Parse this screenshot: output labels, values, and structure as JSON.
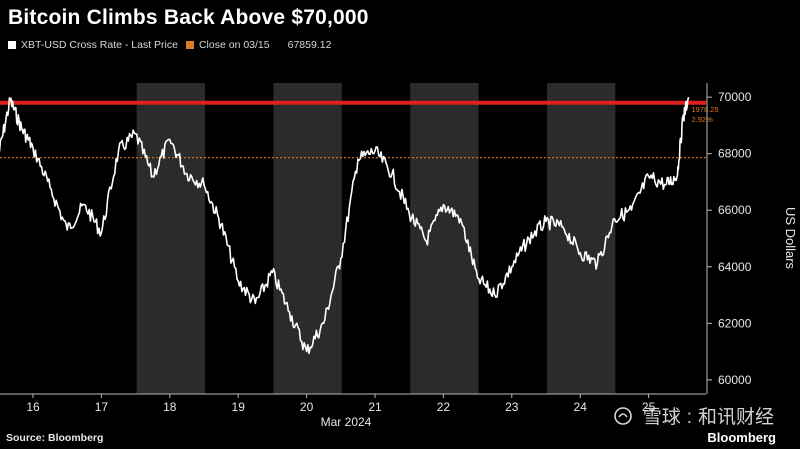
{
  "title": "Bitcoin Climbs Back Above $70,000",
  "legend": {
    "series_label": "XBT-USD Cross Rate - Last Price",
    "close_label": "Close on 03/15",
    "close_value": "67859.12"
  },
  "source": "Source: Bloomberg",
  "brand": "Bloomberg",
  "watermark": {
    "site": "雪球",
    "sep": ":",
    "account": "和讯财经"
  },
  "colors": {
    "background": "#000000",
    "band": "#2b2b2b",
    "series": "#ffffff",
    "close_line": "#e07b1f",
    "highlight_line": "#e0201b"
  },
  "chart_data": {
    "type": "line",
    "title": "Bitcoin Climbs Back Above $70,000",
    "xlabel": "Mar 2024",
    "ylabel": "US Dollars",
    "x_ticks": [
      "16",
      "17",
      "18",
      "19",
      "20",
      "21",
      "22",
      "23",
      "24",
      "25"
    ],
    "y_ticks": [
      "60000",
      "62000",
      "64000",
      "66000",
      "68000",
      "70000"
    ],
    "ylim": [
      59500,
      70500
    ],
    "grid": false,
    "legend_position": "top-left",
    "series": [
      {
        "name": "XBT-USD Cross Rate - Last Price",
        "x": [
          "2024-03-15T12:00",
          "2024-03-15T16:00",
          "2024-03-15T20:00",
          "2024-03-16T00:00",
          "2024-03-16T06:00",
          "2024-03-16T12:00",
          "2024-03-16T18:00",
          "2024-03-17T00:00",
          "2024-03-17T06:00",
          "2024-03-17T12:00",
          "2024-03-17T18:00",
          "2024-03-18T00:00",
          "2024-03-18T06:00",
          "2024-03-18T12:00",
          "2024-03-18T18:00",
          "2024-03-19T00:00",
          "2024-03-19T06:00",
          "2024-03-19T12:00",
          "2024-03-19T18:00",
          "2024-03-20T00:00",
          "2024-03-20T06:00",
          "2024-03-20T12:00",
          "2024-03-20T18:00",
          "2024-03-21T00:00",
          "2024-03-21T06:00",
          "2024-03-21T12:00",
          "2024-03-21T18:00",
          "2024-03-22T00:00",
          "2024-03-22T06:00",
          "2024-03-22T12:00",
          "2024-03-22T18:00",
          "2024-03-23T00:00",
          "2024-03-23T06:00",
          "2024-03-23T12:00",
          "2024-03-23T18:00",
          "2024-03-24T00:00",
          "2024-03-24T06:00",
          "2024-03-24T12:00",
          "2024-03-24T18:00",
          "2024-03-25T00:00",
          "2024-03-25T06:00",
          "2024-03-25T10:00",
          "2024-03-25T12:00",
          "2024-03-25T14:00"
        ],
        "values": [
          68000,
          69900,
          68900,
          68200,
          66800,
          65300,
          66200,
          65200,
          68100,
          68700,
          67200,
          68500,
          67300,
          66900,
          65500,
          63500,
          62700,
          63800,
          62400,
          61000,
          62000,
          64300,
          67800,
          68100,
          67300,
          65900,
          64900,
          66200,
          65700,
          63600,
          63000,
          64000,
          65000,
          65600,
          65400,
          64500,
          64100,
          65700,
          66000,
          67200,
          66900,
          67200,
          69200,
          70000
        ]
      }
    ],
    "reference_lines": [
      {
        "name": "Close on 03/15",
        "value": 67859.12
      },
      {
        "value": 69800
      }
    ],
    "annotations": [
      "1978.25",
      "2.92%"
    ]
  }
}
